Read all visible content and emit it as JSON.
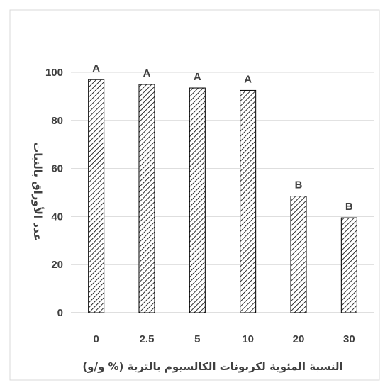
{
  "chart_data": {
    "type": "bar",
    "title": "",
    "xlabel": "النسبة المئوية لكربونات الكالسيوم بالتربة (% و/و)",
    "ylabel": "عدد الأوراق بالنبات",
    "categories": [
      "0",
      "2.5",
      "5",
      "10",
      "20",
      "30"
    ],
    "values": [
      97,
      95,
      93.5,
      92.5,
      48.5,
      39.5
    ],
    "letters": [
      "A",
      "A",
      "A",
      "A",
      "B",
      "B"
    ],
    "ylim": [
      0,
      100
    ],
    "yticks": [
      0,
      20,
      40,
      60,
      80,
      100
    ],
    "grid": true,
    "legend": "none",
    "colors": {
      "bar_fill_pattern": "diagonal-hatch",
      "bar_stroke": "#000000",
      "gridline": "#d9d9d9",
      "text": "#404040"
    }
  }
}
